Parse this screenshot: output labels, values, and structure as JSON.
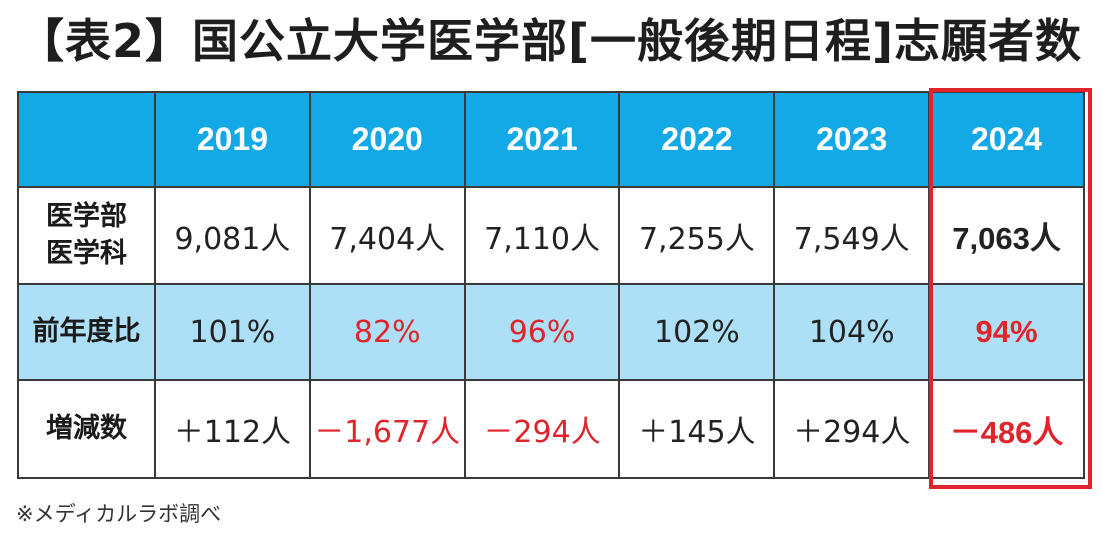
{
  "title": "【表2】国公立大学医学部[一般後期日程]志願者数",
  "table": {
    "years": [
      "2019",
      "2020",
      "2021",
      "2022",
      "2023",
      "2024"
    ],
    "rows": [
      {
        "label_line1": "医学部",
        "label_line2": "医学科",
        "values": [
          "9,081人",
          "7,404人",
          "7,110人",
          "7,255人",
          "7,549人",
          "7,063人"
        ]
      },
      {
        "label": "前年度比",
        "values": [
          "101%",
          "82%",
          "96%",
          "102%",
          "104%",
          "94%"
        ]
      },
      {
        "label": "増減数",
        "values": [
          "＋112人",
          "－1,677人",
          "－294人",
          "＋145人",
          "＋294人",
          "－486人"
        ]
      }
    ],
    "highlight_column": "2024"
  },
  "source": "※メディカルラボ調べ",
  "colors": {
    "header_bg": "#13a8e6",
    "ratio_row_bg": "#ade0f7",
    "negative": "#e0242c",
    "highlight_frame": "#e0242c"
  }
}
